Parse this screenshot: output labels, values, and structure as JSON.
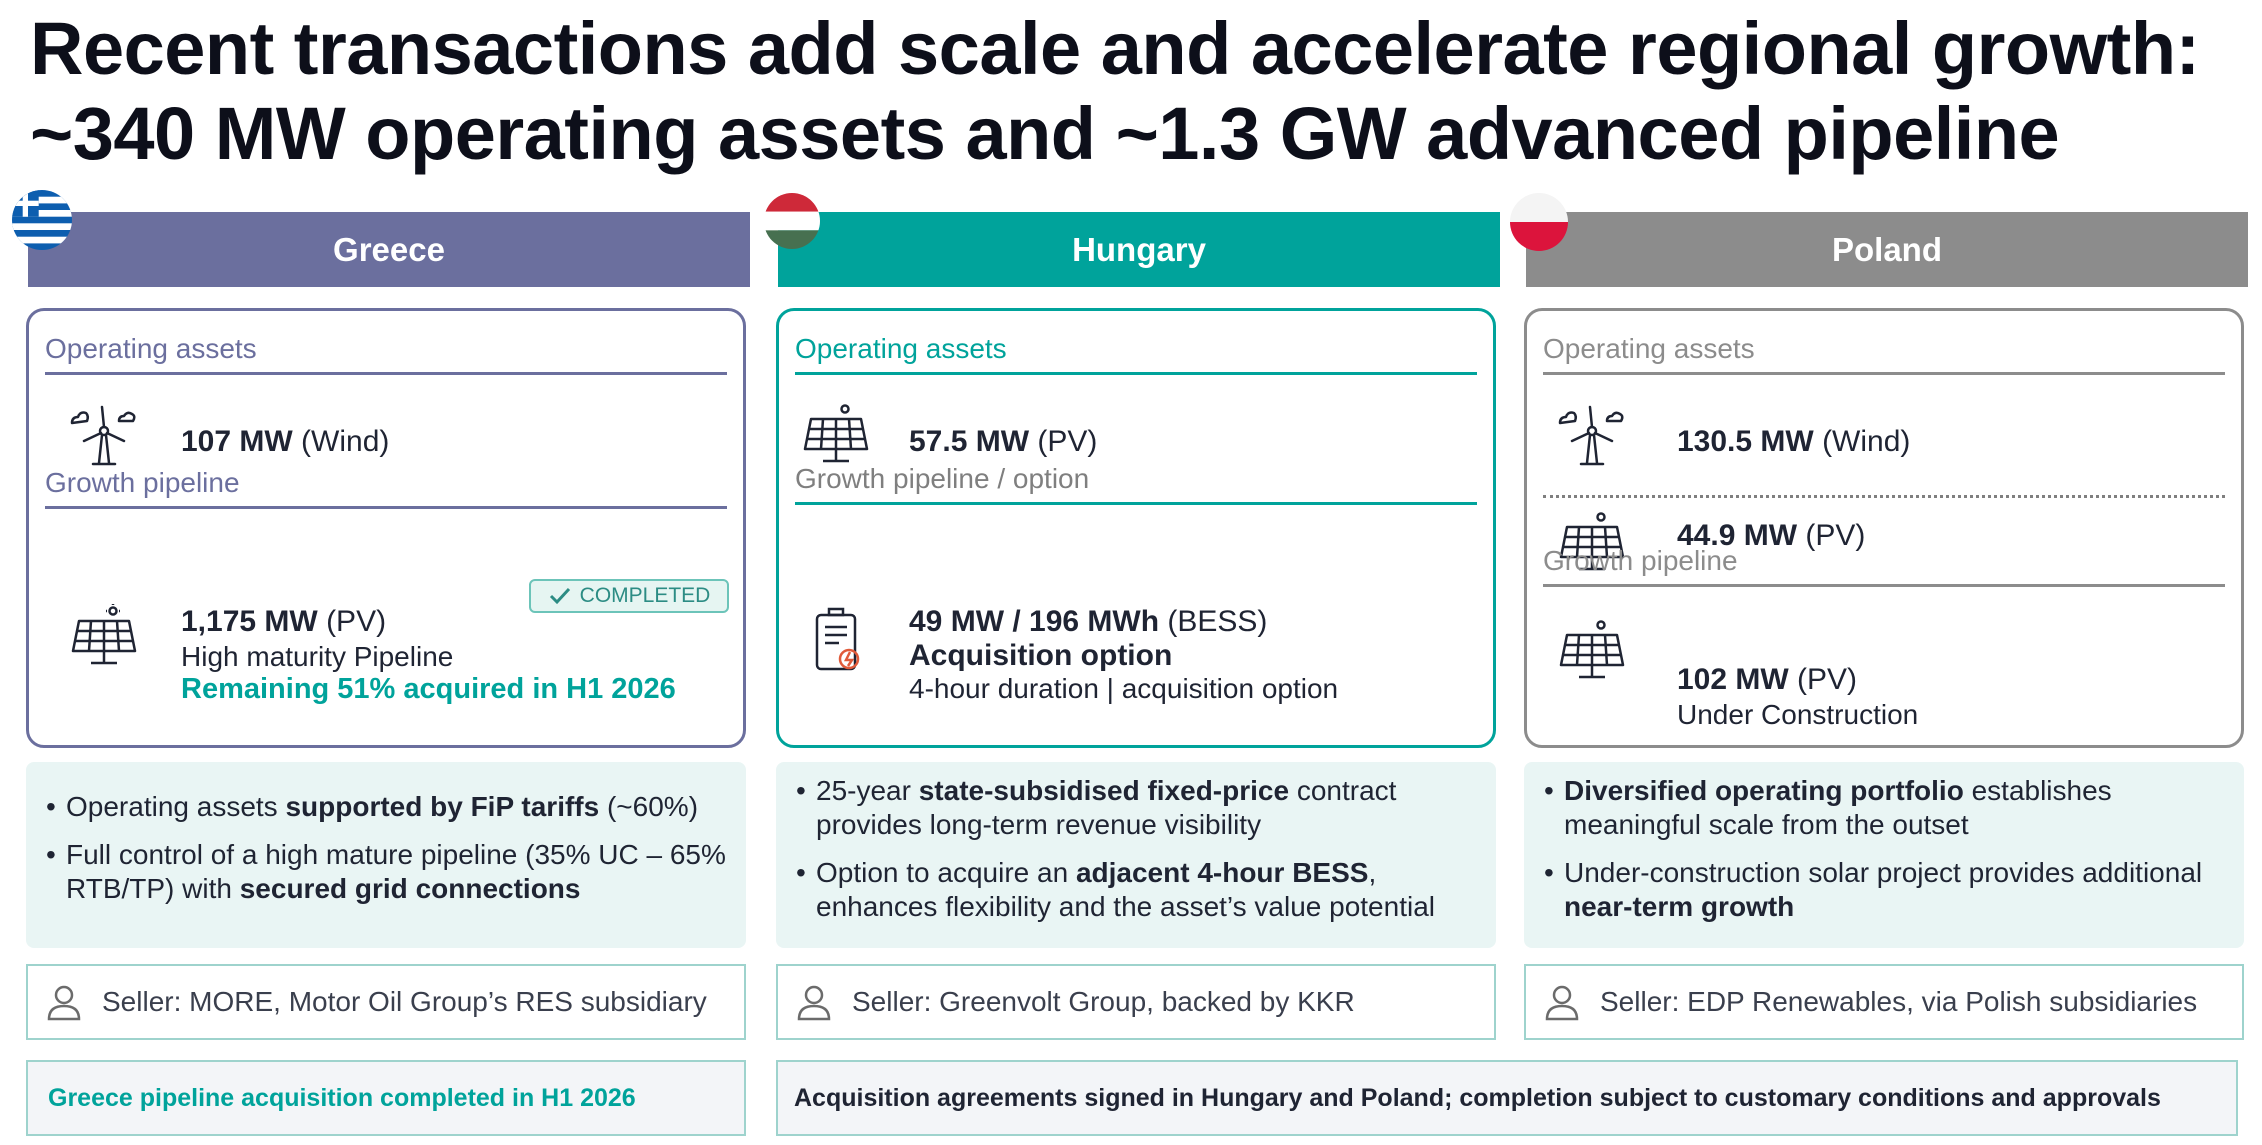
{
  "title": {
    "line1": "Recent transactions add scale and accelerate regional growth:",
    "line2": "~340 MW operating assets and ~1.3 GW advanced pipeline"
  },
  "greece": {
    "name": "Greece",
    "operating_label": "Operating assets",
    "op_value": "107 MW",
    "op_type": "(Wind)",
    "pipeline_label": "Growth pipeline",
    "badge": "COMPLETED",
    "pipe_value": "1,175 MW",
    "pipe_type": "(PV)",
    "pipe_sub": "High maturity Pipeline",
    "pipe_highlight": "Remaining 51% acquired in H1 2026",
    "bullet1_a": "Operating assets ",
    "bullet1_b": "supported by FiP tariffs",
    "bullet1_c": " (~60%)",
    "bullet2_a": "Full control of a high mature pipeline (35% UC – 65% RTB/TP) with ",
    "bullet2_b": "secured grid connections",
    "seller": "Seller: MORE, Motor Oil Group’s RES subsidiary"
  },
  "hungary": {
    "name": "Hungary",
    "operating_label": "Operating assets",
    "op_value": "57.5 MW",
    "op_type": "(PV)",
    "pipeline_label": "Growth pipeline / option",
    "pipe_value": "49 MW / 196 MWh",
    "pipe_type": "(BESS)",
    "pipe_bold": "Acquisition option",
    "pipe_sub": "4-hour duration | acquisition option",
    "bullet1_a": "25-year ",
    "bullet1_b": "state-subsidised fixed-price",
    "bullet1_c": " contract provides long-term revenue visibility",
    "bullet2_a": "Option to acquire an ",
    "bullet2_b": "adjacent 4-hour BESS",
    "bullet2_c": ", enhances flexibility and the asset’s value potential",
    "seller": "Seller: Greenvolt Group, backed by KKR"
  },
  "poland": {
    "name": "Poland",
    "operating_label": "Operating assets",
    "op1_value": "130.5 MW",
    "op1_type": "(Wind)",
    "op2_value": "44.9 MW",
    "op2_type": "(PV)",
    "pipeline_label": "Growth pipeline",
    "pipe_value": "102 MW",
    "pipe_type": "(PV)",
    "pipe_sub": "Under Construction",
    "bullet1_b": "Diversified operating portfolio",
    "bullet1_c": " establishes meaningful scale from the outset",
    "bullet2_a": "Under-construction solar project provides additional ",
    "bullet2_b": "near-term growth",
    "seller": "Seller: EDP Renewables, via Polish subsidiaries"
  },
  "footer": {
    "left": "Greece pipeline acquisition completed in H1 2026",
    "right": "Acquisition agreements signed in Hungary and Poland; completion subject to customary conditions and approvals"
  }
}
